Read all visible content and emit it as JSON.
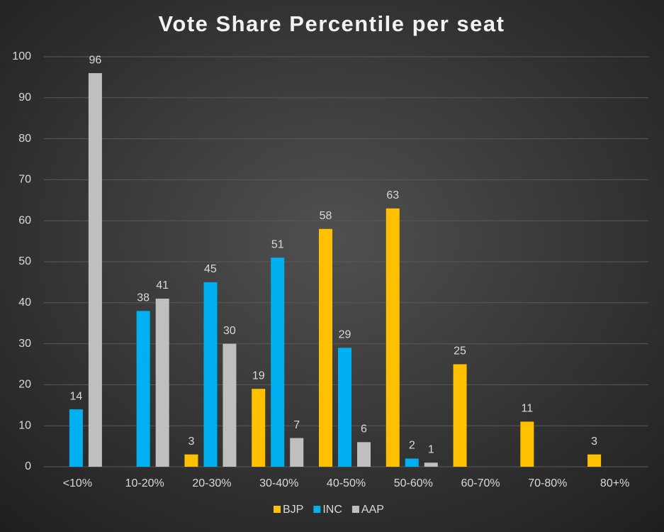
{
  "chart_data": {
    "type": "bar",
    "title": "Vote Share Percentile per seat",
    "categories": [
      "<10%",
      "10-20%",
      "20-30%",
      "30-40%",
      "40-50%",
      "50-60%",
      "60-70%",
      "70-80%",
      "80+%"
    ],
    "series": [
      {
        "name": "BJP",
        "color": "#ffc000",
        "values": [
          null,
          null,
          3,
          19,
          58,
          63,
          25,
          11,
          3
        ]
      },
      {
        "name": "INC",
        "color": "#00b0f0",
        "values": [
          14,
          38,
          45,
          51,
          29,
          2,
          null,
          null,
          null
        ]
      },
      {
        "name": "AAP",
        "color": "#bfbfbf",
        "values": [
          96,
          41,
          30,
          7,
          6,
          1,
          null,
          null,
          null
        ]
      }
    ],
    "ylim": [
      0,
      100
    ],
    "yticks": [
      0,
      10,
      20,
      30,
      40,
      50,
      60,
      70,
      80,
      90,
      100
    ],
    "grid": true,
    "legend": "bottom"
  }
}
